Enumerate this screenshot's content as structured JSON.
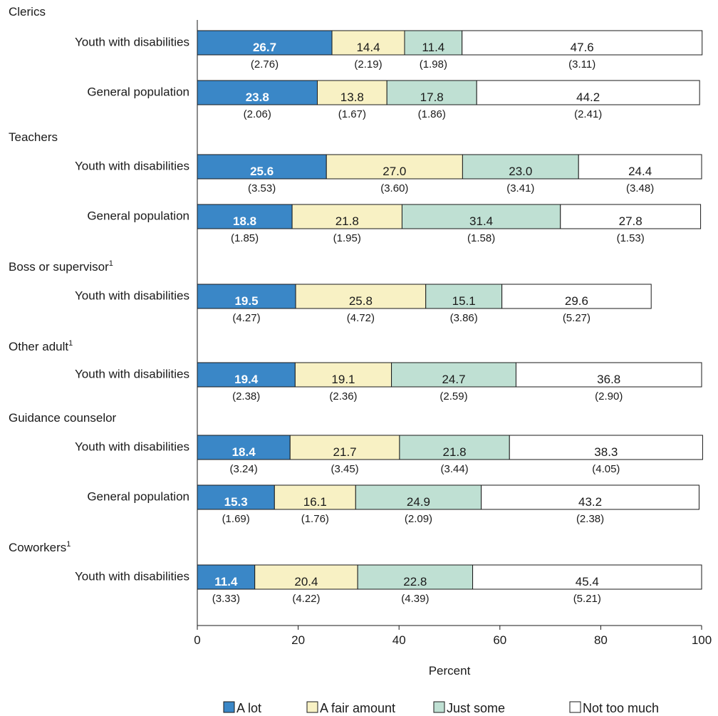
{
  "chart_data": {
    "type": "bar",
    "orientation": "horizontal",
    "stacked": true,
    "xlabel": "Percent",
    "xlim": [
      0,
      100
    ],
    "xticks": [
      0,
      20,
      40,
      60,
      80,
      100
    ],
    "legend_position": "bottom",
    "series": [
      {
        "name": "A lot",
        "color": "#3a87c7"
      },
      {
        "name": "A fair amount",
        "color": "#f8f1c4"
      },
      {
        "name": "Just some",
        "color": "#bfe0d3"
      },
      {
        "name": "Not too much",
        "color": "#ffffff"
      }
    ],
    "groups": [
      {
        "name": "Clerics",
        "footnote": "",
        "rows": [
          {
            "label": "Youth with disabilities",
            "values": [
              26.7,
              14.4,
              11.4,
              47.6
            ],
            "values_text": [
              "26.7",
              "14.4",
              "11.4",
              "47.6"
            ],
            "se": [
              "(2.76)",
              "(2.19)",
              "(1.98)",
              "(3.11)"
            ]
          },
          {
            "label": "General population",
            "values": [
              23.8,
              13.8,
              17.8,
              44.2
            ],
            "values_text": [
              "23.8",
              "13.8",
              "17.8",
              "44.2"
            ],
            "se": [
              "(2.06)",
              "(1.67)",
              "(1.86)",
              "(2.41)"
            ]
          }
        ]
      },
      {
        "name": "Teachers",
        "footnote": "",
        "rows": [
          {
            "label": "Youth with disabilities",
            "values": [
              25.6,
              27.0,
              23.0,
              24.4
            ],
            "values_text": [
              "25.6",
              "27.0",
              "23.0",
              "24.4"
            ],
            "se": [
              "(3.53)",
              "(3.60)",
              "(3.41)",
              "(3.48)"
            ]
          },
          {
            "label": "General population",
            "values": [
              18.8,
              21.8,
              31.4,
              27.8
            ],
            "values_text": [
              "18.8",
              "21.8",
              "31.4",
              "27.8"
            ],
            "se": [
              "(1.85)",
              "(1.95)",
              "(1.58)",
              "(1.53)"
            ]
          }
        ]
      },
      {
        "name": "Boss or supervisor",
        "footnote": "1",
        "rows": [
          {
            "label": "Youth with disabilities",
            "values": [
              19.5,
              25.8,
              15.1,
              29.6
            ],
            "values_text": [
              "19.5",
              "25.8",
              "15.1",
              "29.6"
            ],
            "se": [
              "(4.27)",
              "(4.72)",
              "(3.86)",
              "(5.27)"
            ]
          }
        ]
      },
      {
        "name": "Other adult",
        "footnote": "1",
        "rows": [
          {
            "label": "Youth with disabilities",
            "values": [
              19.4,
              19.1,
              24.7,
              36.8
            ],
            "values_text": [
              "19.4",
              "19.1",
              "24.7",
              "36.8"
            ],
            "se": [
              "(2.38)",
              "(2.36)",
              "(2.59)",
              "(2.90)"
            ]
          }
        ]
      },
      {
        "name": "Guidance counselor",
        "footnote": "",
        "rows": [
          {
            "label": "Youth with disabilities",
            "values": [
              18.4,
              21.7,
              21.8,
              38.3
            ],
            "values_text": [
              "18.4",
              "21.7",
              "21.8",
              "38.3"
            ],
            "se": [
              "(3.24)",
              "(3.45)",
              "(3.44)",
              "(4.05)"
            ]
          },
          {
            "label": "General population",
            "values": [
              15.3,
              16.1,
              24.9,
              43.2
            ],
            "values_text": [
              "15.3",
              "16.1",
              "24.9",
              "43.2"
            ],
            "se": [
              "(1.69)",
              "(1.76)",
              "(2.09)",
              "(2.38)"
            ]
          }
        ]
      },
      {
        "name": "Coworkers",
        "footnote": "1",
        "rows": [
          {
            "label": "Youth with disabilities",
            "values": [
              11.4,
              20.4,
              22.8,
              45.4
            ],
            "values_text": [
              "11.4",
              "20.4",
              "22.8",
              "45.4"
            ],
            "se": [
              "(3.33)",
              "(4.22)",
              "(4.39)",
              "(5.21)"
            ]
          }
        ]
      }
    ]
  }
}
